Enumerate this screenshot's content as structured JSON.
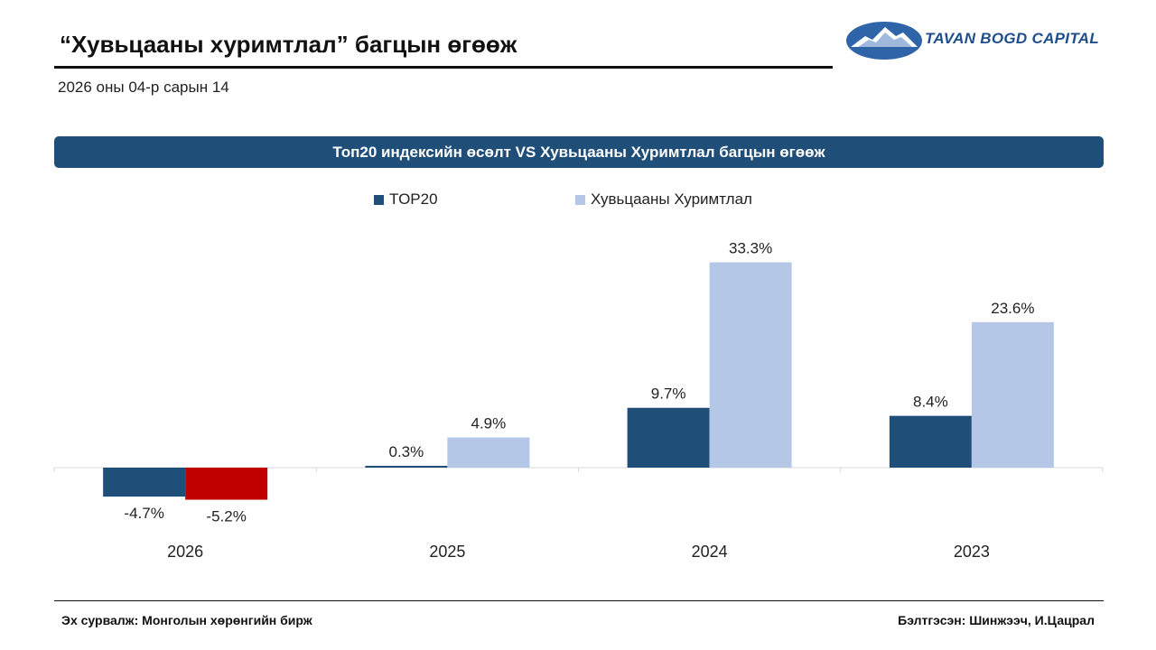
{
  "header": {
    "title": "“Хувьцааны хуримтлал” багцын өгөөж",
    "date": "2026 оны 04-р сарын 14"
  },
  "logo": {
    "text": "TAVAN BOGD CAPITAL"
  },
  "chart_data": {
    "type": "bar",
    "title": "Топ20 индексийн өсөлт VS Хувьцааны Хуримтлал багцын өгөөж",
    "categories": [
      "2026",
      "2025",
      "2024",
      "2023"
    ],
    "series": [
      {
        "name": "TOP20",
        "values": [
          -4.7,
          0.3,
          9.7,
          8.4
        ],
        "color": "#1f4e79",
        "labels": [
          "-4.7%",
          "0.3%",
          "9.7%",
          "8.4%"
        ]
      },
      {
        "name": "Хувьцааны Хуримтлал",
        "values": [
          -5.2,
          4.9,
          33.3,
          23.6
        ],
        "color": "#b4c7e7",
        "negative_color": "#c00000",
        "labels": [
          "-5.2%",
          "4.9%",
          "33.3%",
          "23.6%"
        ]
      }
    ],
    "xlabel": "",
    "ylabel": "",
    "ylim": [
      -7,
      35
    ],
    "grid": false,
    "legend_position": "top-center"
  },
  "footer": {
    "source": "Эх сурвалж: Монголын хөрөнгийн бирж",
    "author": "Бэлтгэсэн: Шинжээч, И.Цацрал"
  },
  "colors": {
    "banner": "#1f4e79",
    "logo_blue": "#1f4e8c"
  },
  "icons": {
    "logo": "mountain-logo-icon"
  }
}
